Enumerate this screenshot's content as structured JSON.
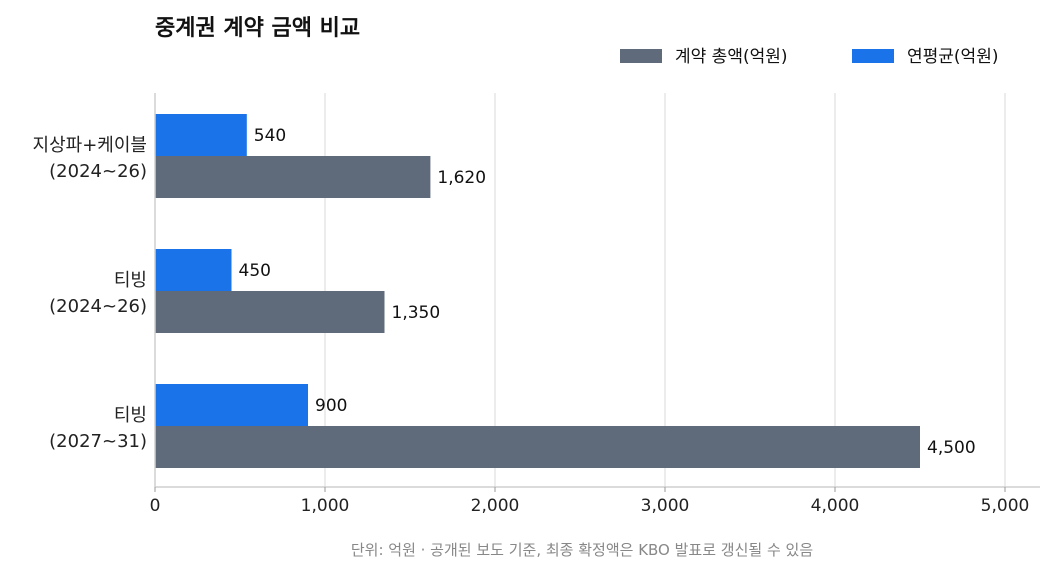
{
  "chart_data": {
    "type": "bar",
    "orientation": "horizontal",
    "title": "중계권 계약 금액 비교",
    "categories": [
      [
        "지상파+케이블",
        "(2024~26)"
      ],
      [
        "티빙",
        "(2024~26)"
      ],
      [
        "티빙",
        "(2027~31)"
      ]
    ],
    "series": [
      {
        "name": "연평균(억원)",
        "values": [
          540,
          450,
          900
        ],
        "labels": [
          "540",
          "450",
          "900"
        ],
        "color": "#1a73e8"
      },
      {
        "name": "계약 총액(억원)",
        "values": [
          1620,
          1350,
          4500
        ],
        "labels": [
          "1,620",
          "1,350",
          "4,500"
        ],
        "color": "#5f6b7a"
      }
    ],
    "legend_order": [
      "계약 총액(억원)",
      "연평균(억원)"
    ],
    "legend_position": "top-right",
    "xlim": [
      0,
      5000
    ],
    "xticks": [
      0,
      1000,
      2000,
      3000,
      4000,
      5000
    ],
    "xtick_labels": [
      "0",
      "1,000",
      "2,000",
      "3,000",
      "4,000",
      "5,000"
    ],
    "grid": true,
    "footnote": "단위: 억원 · 공개된 보도 기준, 최종 확정액은 KBO 발표로 갱신될 수 있음"
  }
}
